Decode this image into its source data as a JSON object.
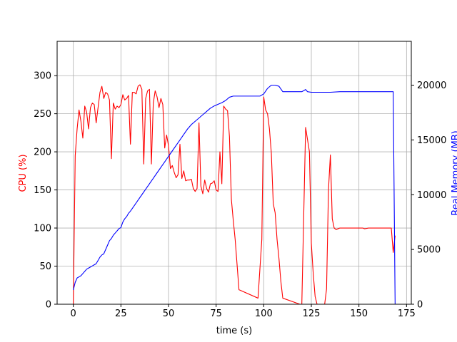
{
  "chart_data": {
    "type": "line",
    "title": "",
    "xlabel": "time (s)",
    "ylabel_left": "CPU (%)",
    "ylabel_right": "Real Memory (MB)",
    "xlim": [
      -8.5,
      177.5
    ],
    "ylim_left": [
      0,
      345
    ],
    "ylim_right": [
      0,
      24000
    ],
    "xticks": [
      0,
      25,
      50,
      75,
      100,
      125,
      150,
      175
    ],
    "yticks_left": [
      0,
      50,
      100,
      150,
      200,
      250,
      300
    ],
    "yticks_right": [
      0,
      5000,
      10000,
      15000,
      20000
    ],
    "grid": true,
    "colors": {
      "cpu": "#ff0000",
      "memory": "#0000ff"
    },
    "series": [
      {
        "name": "CPU (%)",
        "axis": "left",
        "color": "#ff0000",
        "x": [
          0,
          1,
          2,
          3,
          4,
          5,
          6,
          7,
          8,
          9,
          10,
          11,
          12,
          13,
          14,
          15,
          16,
          17,
          18,
          19,
          20,
          21,
          22,
          23,
          24,
          25,
          26,
          27,
          28,
          29,
          30,
          31,
          32,
          33,
          34,
          35,
          36,
          37,
          38,
          39,
          40,
          41,
          42,
          43,
          44,
          45,
          46,
          47,
          48,
          49,
          50,
          51,
          52,
          53,
          54,
          55,
          56,
          57,
          58,
          59,
          60,
          61,
          62,
          63,
          64,
          65,
          66,
          67,
          68,
          69,
          70,
          71,
          72,
          73,
          74,
          75,
          76,
          77,
          78,
          79,
          80,
          81,
          82,
          83,
          84,
          85,
          87,
          97,
          99,
          100,
          101,
          102,
          103,
          104,
          105,
          106,
          107,
          108,
          109,
          110,
          119,
          120,
          122,
          124,
          125,
          126,
          127,
          128,
          132,
          133,
          134,
          135,
          136,
          137,
          138,
          140,
          150,
          152,
          153,
          155,
          160,
          165,
          167,
          168,
          169
        ],
        "values": [
          0,
          195,
          230,
          255,
          240,
          218,
          260,
          252,
          230,
          258,
          264,
          262,
          238,
          258,
          278,
          286,
          270,
          278,
          276,
          268,
          191,
          264,
          256,
          260,
          258,
          262,
          275,
          268,
          270,
          274,
          210,
          278,
          278,
          276,
          286,
          288,
          282,
          184,
          270,
          280,
          282,
          184,
          264,
          280,
          272,
          258,
          270,
          262,
          205,
          222,
          208,
          178,
          182,
          173,
          166,
          170,
          210,
          165,
          175,
          162,
          163,
          163,
          164,
          152,
          148,
          152,
          238,
          155,
          145,
          163,
          152,
          147,
          158,
          159,
          162,
          150,
          148,
          200,
          158,
          260,
          256,
          254,
          220,
          138,
          110,
          85,
          19,
          8,
          85,
          272,
          255,
          250,
          230,
          198,
          132,
          120,
          85,
          60,
          30,
          8,
          0,
          0,
          232,
          200,
          80,
          40,
          10,
          0,
          0,
          20,
          150,
          196,
          112,
          100,
          98,
          100,
          100,
          100,
          99,
          100,
          100,
          100,
          100,
          68,
          90
        ]
      },
      {
        "name": "Real Memory (MB)",
        "axis": "right",
        "color": "#0000ff",
        "x": [
          0,
          1,
          2,
          3,
          4,
          5,
          6,
          7,
          8,
          9,
          10,
          11,
          12,
          13,
          14,
          15,
          16,
          17,
          18,
          19,
          20,
          21,
          22,
          23,
          24,
          25,
          26,
          27,
          28,
          29,
          30,
          32,
          34,
          36,
          38,
          40,
          42,
          44,
          46,
          48,
          50,
          52,
          54,
          56,
          58,
          60,
          62,
          64,
          66,
          68,
          70,
          72,
          74,
          76,
          78,
          80,
          82,
          84,
          86,
          88,
          90,
          92,
          94,
          96,
          98,
          100,
          102,
          104,
          106,
          108,
          110,
          112,
          114,
          116,
          118,
          120,
          122,
          123,
          125,
          130,
          135,
          140,
          145,
          150,
          155,
          160,
          165,
          168,
          169
        ],
        "values": [
          1300,
          2000,
          2400,
          2500,
          2600,
          2800,
          3000,
          3200,
          3300,
          3400,
          3500,
          3600,
          3700,
          4000,
          4300,
          4500,
          4600,
          5000,
          5400,
          5800,
          6000,
          6300,
          6500,
          6700,
          6900,
          7000,
          7500,
          7800,
          8000,
          8300,
          8500,
          9000,
          9500,
          10000,
          10500,
          11000,
          11500,
          12000,
          12500,
          13000,
          13500,
          14000,
          14500,
          15000,
          15500,
          16000,
          16400,
          16700,
          17000,
          17300,
          17600,
          17900,
          18100,
          18250,
          18400,
          18600,
          18900,
          19000,
          19000,
          19000,
          19000,
          19000,
          19000,
          19000,
          19000,
          19200,
          19700,
          20000,
          20000,
          19900,
          19400,
          19400,
          19400,
          19400,
          19400,
          19400,
          19600,
          19400,
          19350,
          19350,
          19350,
          19400,
          19400,
          19400,
          19400,
          19400,
          19400,
          19400,
          0
        ]
      }
    ]
  }
}
